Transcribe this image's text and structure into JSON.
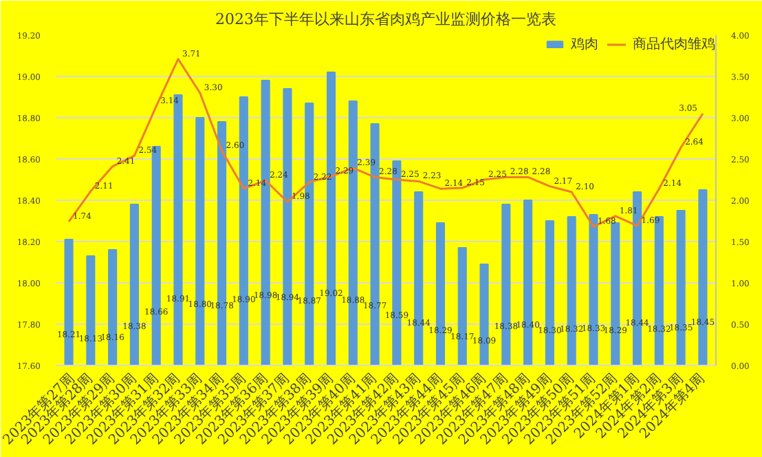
{
  "chart_data": {
    "type": "bar",
    "title": "2023年下半年以来山东省肉鸡产业监测价格一览表",
    "categories": [
      "2023年第27周",
      "2023年第28周",
      "2023年第29周",
      "2023年第30周",
      "2023年第31周",
      "2023年第32周",
      "2023年第33周",
      "2023年第34周",
      "2023年第35周",
      "2023年第36周",
      "2023年第37周",
      "2023年第38周",
      "2023年第39周",
      "2023年第40周",
      "2023年第41周",
      "2023年第42周",
      "2023年第43周",
      "2023年第44周",
      "2023年第45周",
      "2023年第46周",
      "2023年第47周",
      "2023年第48周",
      "2023年第49周",
      "2023年第50周",
      "2023年第51周",
      "2023年第52周",
      "2024年第1周",
      "2024年第2周",
      "2024年第3周",
      "2024年第4周"
    ],
    "series": [
      {
        "name": "鸡肉",
        "color": "#5b9bd5",
        "values": [
          18.21,
          18.13,
          18.16,
          18.38,
          18.66,
          18.91,
          18.8,
          18.78,
          18.9,
          18.98,
          18.94,
          18.87,
          19.02,
          18.88,
          18.77,
          18.59,
          18.44,
          18.29,
          18.17,
          18.09,
          18.38,
          18.4,
          18.3,
          18.32,
          18.33,
          18.29,
          18.44,
          18.32,
          18.35,
          18.45
        ],
        "value_labels": [
          "18.21",
          "18.13",
          "18.16",
          "18.38",
          "18.66",
          "18.91",
          "18.80",
          "18.78",
          "18.90",
          "18.98",
          "18.94",
          "18.87",
          "19.02",
          "18.88",
          "18.77",
          "18.59",
          "18.44",
          "18.29",
          "18.17",
          "18.09",
          "18.38",
          "18.40",
          "18.30",
          "18.32",
          "18.33",
          "18.29",
          "18.44",
          "18.32",
          "18.35",
          "18.45"
        ]
      },
      {
        "name": "商品代肉雏鸡",
        "type": "line",
        "axis": "y2",
        "color": "#ed7d31",
        "values": [
          1.74,
          2.11,
          2.41,
          2.54,
          3.14,
          3.71,
          3.3,
          2.6,
          2.14,
          2.24,
          1.98,
          2.22,
          2.29,
          2.39,
          2.28,
          2.25,
          2.23,
          2.14,
          2.15,
          2.25,
          2.28,
          2.28,
          2.17,
          2.1,
          1.68,
          1.81,
          1.69,
          2.14,
          2.64,
          3.05
        ],
        "value_labels": [
          "1.74",
          "2.11",
          "2.41",
          "2.54",
          "3.14",
          "3.71",
          "3.30",
          "2.60",
          "2.14",
          "2.24",
          "1.98",
          "2.22",
          "2.29",
          "2.39",
          "2.28",
          "2.25",
          "2.23",
          "2.14",
          "2.15",
          "2.25",
          "2.28",
          "2.28",
          "2.17",
          "2.10",
          "1.68",
          "1.81",
          "1.69",
          "2.14",
          "2.64",
          "3.05"
        ]
      }
    ],
    "ylim": [
      17.6,
      19.2
    ],
    "yticks": [
      {
        "value": 17.6,
        "label": "17.60"
      },
      {
        "value": 17.8,
        "label": "17.80"
      },
      {
        "value": 18.0,
        "label": "18.00"
      },
      {
        "value": 18.2,
        "label": "18.20"
      },
      {
        "value": 18.4,
        "label": "18.40"
      },
      {
        "value": 18.6,
        "label": "18.60"
      },
      {
        "value": 18.8,
        "label": "18.80"
      },
      {
        "value": 19.0,
        "label": "19.00"
      },
      {
        "value": 19.2,
        "label": "19.20"
      }
    ],
    "y2lim": [
      0,
      4
    ],
    "y2ticks": [
      {
        "value": 0,
        "label": "0.00"
      },
      {
        "value": 0.5,
        "label": "0.50"
      },
      {
        "value": 1,
        "label": "1.00"
      },
      {
        "value": 1.5,
        "label": "1.50"
      },
      {
        "value": 2,
        "label": "2.00"
      },
      {
        "value": 2.5,
        "label": "2.50"
      },
      {
        "value": 3,
        "label": "3.00"
      },
      {
        "value": 3.5,
        "label": "3.50"
      },
      {
        "value": 4,
        "label": "4.00"
      }
    ],
    "grid": "y",
    "legend": "top right"
  }
}
